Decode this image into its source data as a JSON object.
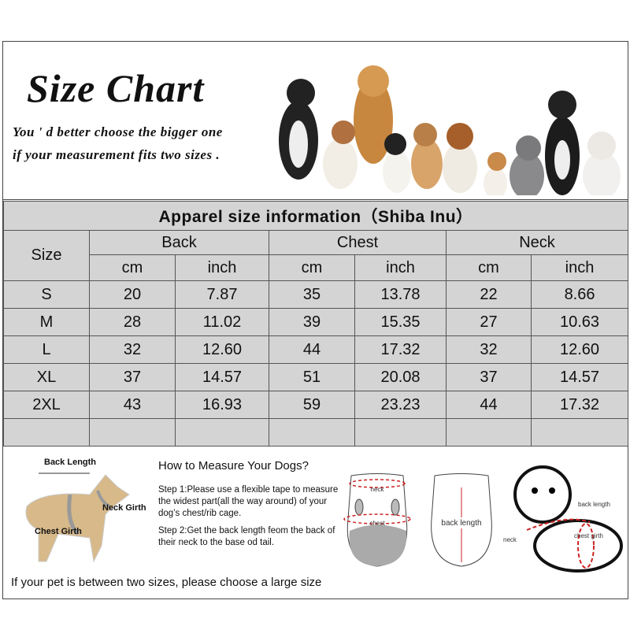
{
  "header": {
    "title": "Size Chart",
    "line1": "You ' d better choose the bigger one",
    "line2": "if your measurement fits two sizes ."
  },
  "table": {
    "title": "Apparel  size  information（Shiba Inu）",
    "size_label": "Size",
    "groups": [
      "Back",
      "Chest",
      "Neck"
    ],
    "units": [
      "cm",
      "inch",
      "cm",
      "inch",
      "cm",
      "inch"
    ],
    "rows": [
      [
        "S",
        "20",
        "7.87",
        "35",
        "13.78",
        "22",
        "8.66"
      ],
      [
        "M",
        "28",
        "11.02",
        "39",
        "15.35",
        "27",
        "10.63"
      ],
      [
        "L",
        "32",
        "12.60",
        "44",
        "17.32",
        "32",
        "12.60"
      ],
      [
        "XL",
        "37",
        "14.57",
        "51",
        "20.08",
        "37",
        "14.57"
      ],
      [
        "2XL",
        "43",
        "16.93",
        "59",
        "23.23",
        "44",
        "17.32"
      ]
    ]
  },
  "measure": {
    "dog_labels": {
      "back": "Back Length",
      "neck": "Neck Girth",
      "chest": "Chest Girth"
    },
    "title": "How to Measure Your Dogs?",
    "step1": "Step 1:Please use a flexible tape to measure the widest part(all the way around) of your dog’s chest/rib cage.",
    "step2": "Step 2:Get the back length feom the back of their neck to the base od tail.",
    "note": "If your pet is between two sizes, please choose a large size",
    "garment_labels": {
      "neck": "neck",
      "chest": "chest",
      "back": "back length"
    },
    "puppy_labels": {
      "back": "back length",
      "neck": "neck",
      "chest": "chest girth"
    }
  }
}
